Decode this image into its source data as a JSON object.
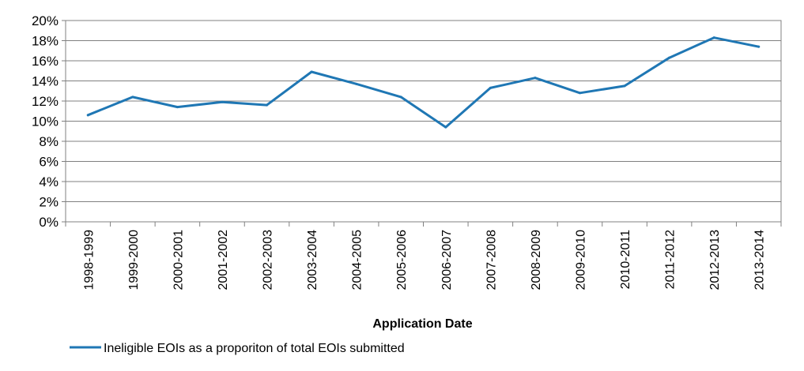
{
  "chart_data": {
    "type": "line",
    "categories": [
      "1998-1999",
      "1999-2000",
      "2000-2001",
      "2001-2002",
      "2002-2003",
      "2003-2004",
      "2004-2005",
      "2005-2006",
      "2006-2007",
      "2007-2008",
      "2008-2009",
      "2009-2010",
      "2010-2011",
      "2011-2012",
      "2012-2013",
      "2013-2014"
    ],
    "series": [
      {
        "name": "Ineligible EOIs as a proporiton of total EOIs submitted",
        "values": [
          10.6,
          12.4,
          11.4,
          11.9,
          11.6,
          14.9,
          13.7,
          12.4,
          9.4,
          13.3,
          14.3,
          12.8,
          13.5,
          16.3,
          18.3,
          17.4
        ],
        "color": "#1f77b4"
      }
    ],
    "xlabel": "Application Date",
    "ylabel": "",
    "ylim": [
      0,
      20
    ],
    "yticks": [
      0,
      2,
      4,
      6,
      8,
      10,
      12,
      14,
      16,
      18,
      20
    ],
    "ytick_labels": [
      "0%",
      "2%",
      "4%",
      "6%",
      "8%",
      "10%",
      "12%",
      "14%",
      "16%",
      "18%",
      "20%"
    ],
    "grid": true,
    "legend": "bottom-left"
  }
}
